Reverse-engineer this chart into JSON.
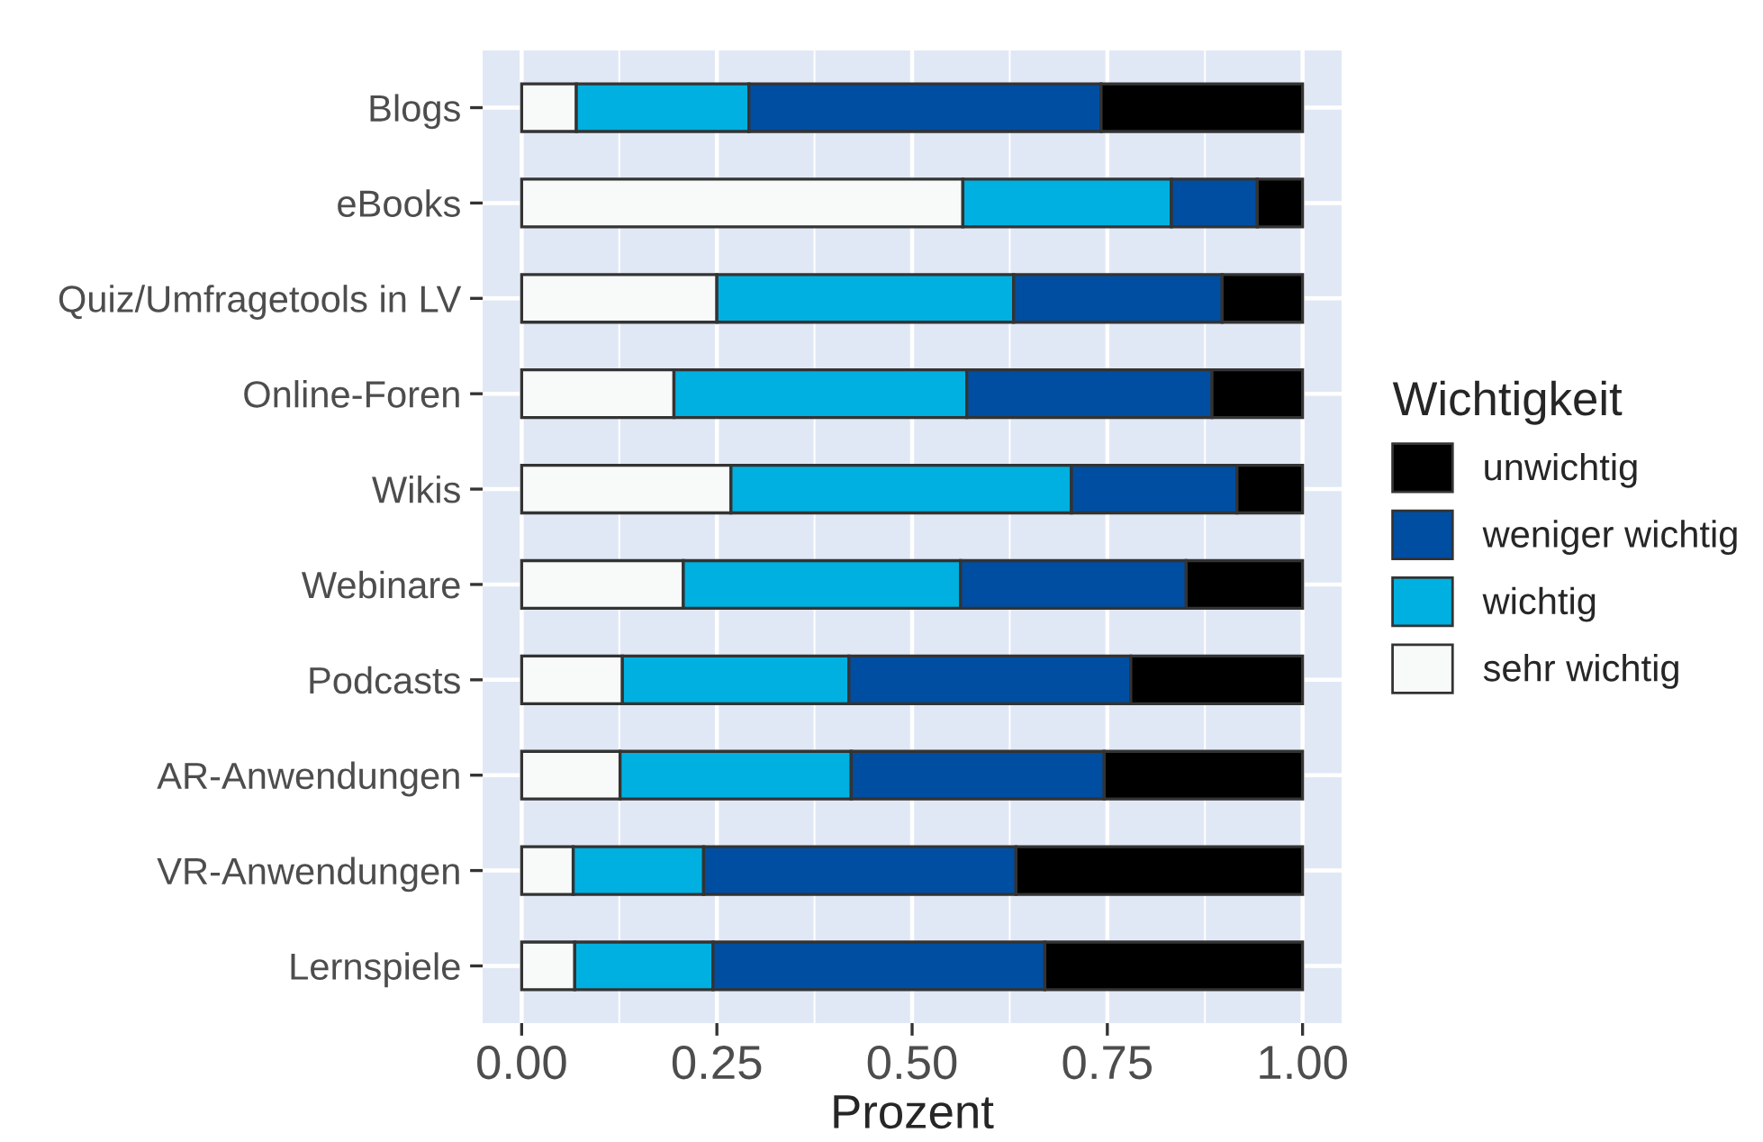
{
  "chart_data": {
    "type": "bar",
    "orientation": "horizontal",
    "stacked": true,
    "categories": [
      "Blogs",
      "eBooks",
      "Quiz/Umfragetools in LV",
      "Online-Foren",
      "Wikis",
      "Webinare",
      "Podcasts",
      "AR-Anwendungen",
      "VR-Anwendungen",
      "Lernspiele"
    ],
    "series": [
      {
        "name": "sehr wichtig",
        "color": "#f8fafa",
        "values": [
          0.07,
          0.565,
          0.25,
          0.195,
          0.268,
          0.207,
          0.129,
          0.126,
          0.066,
          0.068
        ]
      },
      {
        "name": "wichtig",
        "color": "#00b0e0",
        "values": [
          0.221,
          0.267,
          0.38,
          0.375,
          0.436,
          0.355,
          0.29,
          0.296,
          0.167,
          0.177
        ]
      },
      {
        "name": "weniger wichtig",
        "color": "#004ea2",
        "values": [
          0.451,
          0.11,
          0.267,
          0.314,
          0.212,
          0.289,
          0.361,
          0.324,
          0.4,
          0.425
        ]
      },
      {
        "name": "unwichtig",
        "color": "#000000",
        "values": [
          0.258,
          0.058,
          0.103,
          0.116,
          0.084,
          0.149,
          0.22,
          0.254,
          0.367,
          0.33
        ]
      }
    ],
    "xlabel": "Prozent",
    "legend_title": "Wichtigkeit",
    "legend": "right",
    "xlim": [
      -0.05,
      1.05
    ],
    "xticks": [
      {
        "value": 0,
        "label": "0.00"
      },
      {
        "value": 0.25,
        "label": "0.25"
      },
      {
        "value": 0.5,
        "label": "0.50"
      },
      {
        "value": 0.75,
        "label": "0.75"
      },
      {
        "value": 1,
        "label": "1.00"
      }
    ],
    "grid": true
  }
}
